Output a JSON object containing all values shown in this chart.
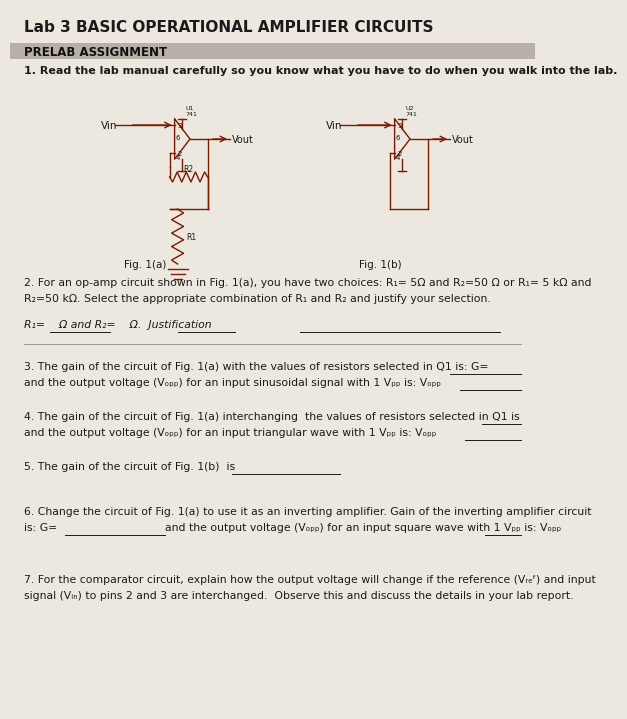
{
  "title": "Lab 3 BASIC OPERATIONAL AMPLIFIER CIRCUITS",
  "section": "PRELAB ASSIGNMENT",
  "q1": "1. Read the lab manual carefully so you know what you have to do when you walk into the lab.",
  "fig1a_label": "Fig. 1(a)",
  "fig1b_label": "Fig. 1(b)",
  "q2_line1": "2. For an op-amp circuit shown in Fig. 1(a), you have two choices: R₁= 5Ω and R₂=50 Ω or R₁= 5 kΩ and",
  "q2_line2": "R₂=50 kΩ. Select the appropriate combination of R₁ and R₂ and justify your selection.",
  "q2_ans": "R₁=    Ω and R₂=    Ω.  Justification",
  "q3_line1": "3. The gain of the circuit of Fig. 1(a) with the values of resistors selected in Q1 is: G=",
  "q3_line2": "and the output voltage (Vₒₚₚ) for an input sinusoidal signal with 1 Vₚₚ is: Vₒₚₚ",
  "q4_line1": "4. The gain of the circuit of Fig. 1(a) interchanging  the values of resistors selected in Q1 is",
  "q4_line2": "and the output voltage (Vₒₚₚ) for an input triangular wave with 1 Vₚₚ is: Vₒₚₚ",
  "q5": "5. The gain of the circuit of Fig. 1(b)  is",
  "q6_line1": "6. Change the circuit of Fig. 1(a) to use it as an inverting amplifier. Gain of the inverting amplifier circuit",
  "q6_line2a": "is: G=",
  "q6_line2b": "and the output voltage (Vₒₚₚ) for an input square wave with 1 Vₚₚ is: Vₒₚₚ",
  "q7_line1": "7. For the comparator circuit, explain how the output voltage will change if the reference (Vᵣₑᶠ) and input",
  "q7_line2": "signal (Vᵢₙ) to pins 2 and 3 are interchanged.  Observe this and discuss the details in your lab report.",
  "bg_color": "#ede8df",
  "header_bg": "#b8b0a8",
  "cc": "#7a1a00",
  "text_color": "#1a1a1a",
  "line_color": "#666666"
}
